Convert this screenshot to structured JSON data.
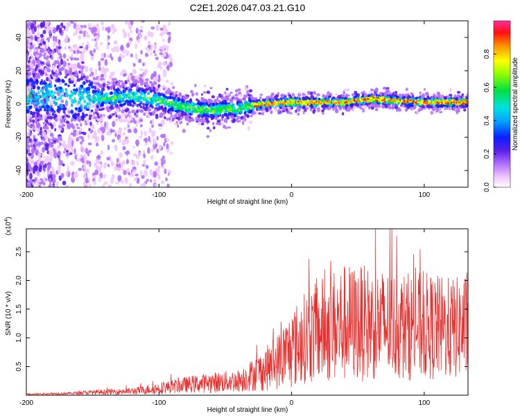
{
  "title": "C2E1.2026.047.03.21.G10",
  "chart_data": [
    {
      "type": "heatmap",
      "title": "C2E1.2026.047.03.21.G10",
      "xlabel": "Height of straight line (km)",
      "ylabel": "Frequency (Hz)",
      "xlim": [
        -200,
        133
      ],
      "ylim": [
        -50,
        50
      ],
      "xticks": [
        "-200",
        "-100",
        "0",
        "100"
      ],
      "xtick_values": [
        -200,
        -100,
        0,
        100
      ],
      "yticks": [
        "-40",
        "-20",
        "0",
        "20",
        "40"
      ],
      "ytick_values": [
        -40,
        -20,
        0,
        20,
        40
      ],
      "colorbar": {
        "label": "Normalized spectral amplitude",
        "range": [
          0,
          1
        ],
        "ticks": [
          "0.0",
          "0.2",
          "0.4",
          "0.6",
          "0.8"
        ],
        "tick_values": [
          0.0,
          0.2,
          0.4,
          0.6,
          0.8
        ]
      },
      "center_frequency_track": {
        "x": [
          -200,
          -150,
          -130,
          -120,
          -100,
          -80,
          -60,
          -50,
          -40,
          -30,
          -20,
          0,
          20,
          40,
          60,
          80,
          100,
          120,
          133
        ],
        "y": [
          5,
          3,
          4,
          5,
          2,
          -2,
          -4,
          -3,
          -3,
          -1,
          0,
          1,
          1,
          1,
          3,
          2,
          1,
          1,
          1
        ]
      }
    },
    {
      "type": "line",
      "xlabel": "Height of straight line (km)",
      "ylabel": "SNR (10 * v/v)",
      "y_multiplier": "(x10",
      "y_multiplier_exp": "4",
      "y_multiplier_close": ")",
      "xlim": [
        -200,
        133
      ],
      "ylim": [
        0,
        2.9
      ],
      "xticks": [
        "-200",
        "-100",
        "0",
        "100"
      ],
      "xtick_values": [
        -200,
        -100,
        0,
        100
      ],
      "yticks": [
        "0.5",
        "1.0",
        "1.5",
        "2.0",
        "2.5"
      ],
      "ytick_values": [
        0.5,
        1.0,
        1.5,
        2.0,
        2.5
      ],
      "series_color": "#e8302e",
      "envelope": {
        "x": [
          -200,
          -170,
          -150,
          -120,
          -100,
          -80,
          -60,
          -40,
          -30,
          -20,
          -10,
          0,
          10,
          20,
          30,
          40,
          60,
          80,
          100,
          120,
          133
        ],
        "mean": [
          0.02,
          0.03,
          0.05,
          0.07,
          0.12,
          0.18,
          0.22,
          0.25,
          0.35,
          0.45,
          0.6,
          0.8,
          1.0,
          1.1,
          1.2,
          1.25,
          1.25,
          1.2,
          1.2,
          1.15,
          1.2
        ],
        "spread": [
          0.01,
          0.02,
          0.04,
          0.06,
          0.1,
          0.14,
          0.18,
          0.2,
          0.28,
          0.38,
          0.5,
          0.7,
          0.8,
          0.9,
          1.0,
          1.05,
          1.0,
          0.95,
          0.95,
          0.9,
          0.9
        ]
      }
    }
  ]
}
